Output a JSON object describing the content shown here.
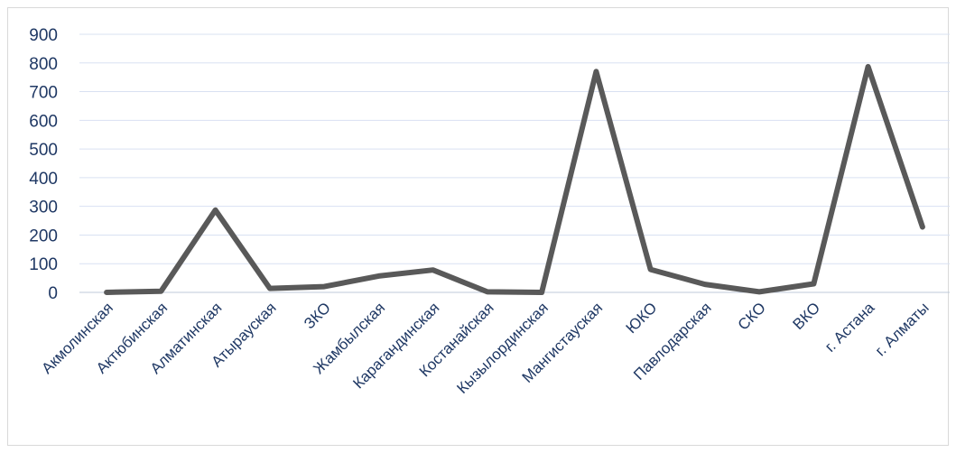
{
  "chart_data": {
    "type": "line",
    "title": "",
    "xlabel": "",
    "ylabel": "",
    "ylim": [
      0,
      900
    ],
    "y_ticks": [
      0,
      100,
      200,
      300,
      400,
      500,
      600,
      700,
      800,
      900
    ],
    "grid": true,
    "legend": "none",
    "categories": [
      "Акмолинская",
      "Актюбинская",
      "Алматинская",
      "Атырауская",
      "ЗКО",
      "Жамбылская",
      "Карагандинская",
      "Костанайская",
      "Кызылординская",
      "Мангистауская",
      "ЮКО",
      "Павлодарская",
      "СКО",
      "ВКО",
      "г. Астана",
      "г. Алматы"
    ],
    "series": [
      {
        "values": [
          0,
          4,
          287,
          14,
          20,
          57,
          78,
          2,
          0,
          770,
          80,
          28,
          2,
          30,
          787,
          228
        ],
        "color": "#595959"
      }
    ]
  }
}
